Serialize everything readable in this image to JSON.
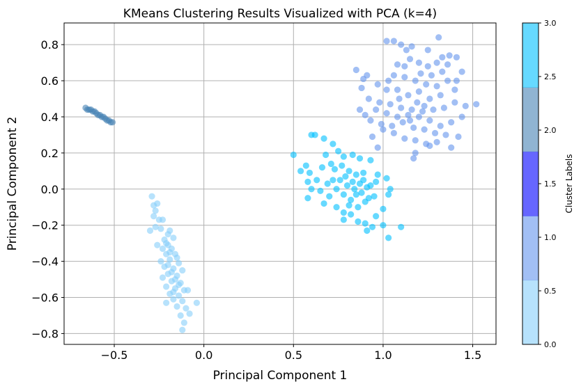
{
  "chart_data": {
    "type": "scatter",
    "title": "KMeans Clustering Results Visualized with PCA (k=4)",
    "xlabel": "Principal Component 1",
    "ylabel": "Principal Component 2",
    "xlim": [
      -0.78,
      1.63
    ],
    "ylim": [
      -0.86,
      0.92
    ],
    "x_ticks": [
      -0.5,
      0.0,
      0.5,
      1.0,
      1.5
    ],
    "x_tick_labels": [
      "−0.5",
      "0.0",
      "0.5",
      "1.0",
      "1.5"
    ],
    "y_ticks": [
      -0.8,
      -0.6,
      -0.4,
      -0.2,
      0.0,
      0.2,
      0.4,
      0.6,
      0.8
    ],
    "y_tick_labels": [
      "−0.8",
      "−0.6",
      "−0.4",
      "−0.2",
      "0.0",
      "0.2",
      "0.4",
      "0.6",
      "0.8"
    ],
    "grid": true,
    "marker_alpha": 0.6,
    "series": [
      {
        "cluster": 0,
        "color": "#87CEFA",
        "points": [
          [
            -0.29,
            -0.04
          ],
          [
            -0.28,
            -0.09
          ],
          [
            -0.27,
            -0.12
          ],
          [
            -0.26,
            -0.08
          ],
          [
            -0.28,
            -0.15
          ],
          [
            -0.25,
            -0.17
          ],
          [
            -0.27,
            -0.21
          ],
          [
            -0.3,
            -0.23
          ],
          [
            -0.24,
            -0.22
          ],
          [
            -0.2,
            -0.25
          ],
          [
            -0.19,
            -0.23
          ],
          [
            -0.22,
            -0.28
          ],
          [
            -0.17,
            -0.27
          ],
          [
            -0.2,
            -0.31
          ],
          [
            -0.23,
            -0.33
          ],
          [
            -0.18,
            -0.33
          ],
          [
            -0.21,
            -0.36
          ],
          [
            -0.16,
            -0.36
          ],
          [
            -0.24,
            -0.4
          ],
          [
            -0.19,
            -0.39
          ],
          [
            -0.14,
            -0.41
          ],
          [
            -0.22,
            -0.43
          ],
          [
            -0.17,
            -0.44
          ],
          [
            -0.12,
            -0.45
          ],
          [
            -0.2,
            -0.47
          ],
          [
            -0.15,
            -0.48
          ],
          [
            -0.23,
            -0.49
          ],
          [
            -0.18,
            -0.51
          ],
          [
            -0.13,
            -0.52
          ],
          [
            -0.21,
            -0.54
          ],
          [
            -0.16,
            -0.55
          ],
          [
            -0.11,
            -0.56
          ],
          [
            -0.19,
            -0.58
          ],
          [
            -0.14,
            -0.59
          ],
          [
            -0.17,
            -0.61
          ],
          [
            -0.12,
            -0.62
          ],
          [
            -0.15,
            -0.65
          ],
          [
            -0.1,
            -0.66
          ],
          [
            -0.13,
            -0.7
          ],
          [
            -0.08,
            -0.69
          ],
          [
            -0.11,
            -0.74
          ],
          [
            -0.04,
            -0.63
          ],
          [
            -0.12,
            -0.78
          ],
          [
            -0.23,
            -0.17
          ],
          [
            -0.26,
            -0.31
          ],
          [
            -0.21,
            -0.63
          ],
          [
            -0.09,
            -0.56
          ],
          [
            -0.15,
            -0.38
          ],
          [
            -0.2,
            -0.42
          ],
          [
            -0.16,
            -0.5
          ],
          [
            -0.18,
            -0.46
          ],
          [
            -0.14,
            -0.53
          ],
          [
            -0.17,
            -0.57
          ],
          [
            -0.21,
            -0.3
          ],
          [
            -0.19,
            -0.35
          ]
        ]
      },
      {
        "cluster": 1,
        "color": "#6495ED",
        "points": [
          [
            1.02,
            0.82
          ],
          [
            1.06,
            0.82
          ],
          [
            1.1,
            0.8
          ],
          [
            1.16,
            0.79
          ],
          [
            1.25,
            0.77
          ],
          [
            1.31,
            0.84
          ],
          [
            1.33,
            0.73
          ],
          [
            1.37,
            0.74
          ],
          [
            1.41,
            0.73
          ],
          [
            1.44,
            0.65
          ],
          [
            1.41,
            0.6
          ],
          [
            1.36,
            0.69
          ],
          [
            1.3,
            0.7
          ],
          [
            1.25,
            0.68
          ],
          [
            1.2,
            0.7
          ],
          [
            1.15,
            0.72
          ],
          [
            1.12,
            0.68
          ],
          [
            1.08,
            0.69
          ],
          [
            1.06,
            0.63
          ],
          [
            1.12,
            0.62
          ],
          [
            1.18,
            0.6
          ],
          [
            1.24,
            0.58
          ],
          [
            1.3,
            0.57
          ],
          [
            1.36,
            0.6
          ],
          [
            1.4,
            0.55
          ],
          [
            1.32,
            0.52
          ],
          [
            1.26,
            0.5
          ],
          [
            1.2,
            0.54
          ],
          [
            1.14,
            0.52
          ],
          [
            1.08,
            0.55
          ],
          [
            1.02,
            0.55
          ],
          [
            0.97,
            0.58
          ],
          [
            0.91,
            0.63
          ],
          [
            0.88,
            0.56
          ],
          [
            0.92,
            0.5
          ],
          [
            0.98,
            0.48
          ],
          [
            1.04,
            0.47
          ],
          [
            1.1,
            0.45
          ],
          [
            1.16,
            0.44
          ],
          [
            1.22,
            0.43
          ],
          [
            1.28,
            0.44
          ],
          [
            1.34,
            0.45
          ],
          [
            1.4,
            0.48
          ],
          [
            1.46,
            0.46
          ],
          [
            1.52,
            0.47
          ],
          [
            1.44,
            0.4
          ],
          [
            1.38,
            0.37
          ],
          [
            1.32,
            0.35
          ],
          [
            1.26,
            0.38
          ],
          [
            1.2,
            0.4
          ],
          [
            1.14,
            0.41
          ],
          [
            1.08,
            0.4
          ],
          [
            1.02,
            0.42
          ],
          [
            0.96,
            0.44
          ],
          [
            0.9,
            0.41
          ],
          [
            0.87,
            0.44
          ],
          [
            0.93,
            0.38
          ],
          [
            0.99,
            0.36
          ],
          [
            1.05,
            0.35
          ],
          [
            1.11,
            0.37
          ],
          [
            1.17,
            0.34
          ],
          [
            1.23,
            0.33
          ],
          [
            1.29,
            0.31
          ],
          [
            1.35,
            0.3
          ],
          [
            1.42,
            0.29
          ],
          [
            1.3,
            0.26
          ],
          [
            1.24,
            0.25
          ],
          [
            1.18,
            0.27
          ],
          [
            1.12,
            0.28
          ],
          [
            1.06,
            0.31
          ],
          [
            1.0,
            0.33
          ],
          [
            0.94,
            0.29
          ],
          [
            0.97,
            0.23
          ],
          [
            1.18,
            0.2
          ],
          [
            1.26,
            0.24
          ],
          [
            1.38,
            0.23
          ],
          [
            1.17,
            0.17
          ],
          [
            0.89,
            0.61
          ],
          [
            0.85,
            0.66
          ],
          [
            1.13,
            0.77
          ],
          [
            1.21,
            0.64
          ],
          [
            1.27,
            0.63
          ],
          [
            1.33,
            0.65
          ],
          [
            1.19,
            0.48
          ],
          [
            1.23,
            0.46
          ],
          [
            1.15,
            0.38
          ],
          [
            1.09,
            0.5
          ],
          [
            1.03,
            0.6
          ]
        ]
      },
      {
        "cluster": 2,
        "color": "#4682B4",
        "points": [
          [
            -0.66,
            0.45
          ],
          [
            -0.64,
            0.44
          ],
          [
            -0.62,
            0.43
          ],
          [
            -0.6,
            0.42
          ],
          [
            -0.58,
            0.41
          ],
          [
            -0.56,
            0.4
          ],
          [
            -0.54,
            0.38
          ],
          [
            -0.52,
            0.37
          ],
          [
            -0.53,
            0.38
          ],
          [
            -0.57,
            0.4
          ],
          [
            -0.61,
            0.43
          ],
          [
            -0.65,
            0.44
          ],
          [
            -0.55,
            0.39
          ],
          [
            -0.59,
            0.41
          ],
          [
            -0.63,
            0.44
          ],
          [
            -0.51,
            0.37
          ]
        ]
      },
      {
        "cluster": 3,
        "color": "#00BFFF",
        "points": [
          [
            0.5,
            0.19
          ],
          [
            0.6,
            0.3
          ],
          [
            0.62,
            0.3
          ],
          [
            0.67,
            0.28
          ],
          [
            0.57,
            0.13
          ],
          [
            0.54,
            0.1
          ],
          [
            0.59,
            0.09
          ],
          [
            0.58,
            0.04
          ],
          [
            0.63,
            0.05
          ],
          [
            0.6,
            0.0
          ],
          [
            0.65,
            -0.01
          ],
          [
            0.58,
            -0.05
          ],
          [
            0.67,
            -0.08
          ],
          [
            0.7,
            -0.04
          ],
          [
            0.74,
            -0.1
          ],
          [
            0.78,
            -0.13
          ],
          [
            0.82,
            -0.14
          ],
          [
            0.78,
            -0.17
          ],
          [
            0.86,
            -0.18
          ],
          [
            0.9,
            -0.19
          ],
          [
            0.94,
            -0.21
          ],
          [
            1.0,
            -0.2
          ],
          [
            0.91,
            -0.23
          ],
          [
            1.03,
            -0.27
          ],
          [
            1.1,
            -0.21
          ],
          [
            0.96,
            -0.15
          ],
          [
            1.0,
            -0.11
          ],
          [
            1.03,
            -0.03
          ],
          [
            1.04,
            0.0
          ],
          [
            1.02,
            0.06
          ],
          [
            0.97,
            0.08
          ],
          [
            0.93,
            0.16
          ],
          [
            0.87,
            0.17
          ],
          [
            0.83,
            0.19
          ],
          [
            0.78,
            0.18
          ],
          [
            0.75,
            0.21
          ],
          [
            0.72,
            0.25
          ],
          [
            0.68,
            0.19
          ],
          [
            0.71,
            0.14
          ],
          [
            0.66,
            0.12
          ],
          [
            0.73,
            0.11
          ],
          [
            0.77,
            0.13
          ],
          [
            0.81,
            0.1
          ],
          [
            0.85,
            0.08
          ],
          [
            0.89,
            0.05
          ],
          [
            0.93,
            0.02
          ],
          [
            0.95,
            -0.04
          ],
          [
            0.9,
            -0.07
          ],
          [
            0.86,
            -0.1
          ],
          [
            0.82,
            -0.06
          ],
          [
            0.78,
            -0.03
          ],
          [
            0.74,
            0.0
          ],
          [
            0.76,
            0.05
          ],
          [
            0.8,
            0.02
          ],
          [
            0.84,
            0.0
          ],
          [
            0.88,
            -0.02
          ],
          [
            0.92,
            -0.05
          ],
          [
            0.79,
            0.07
          ],
          [
            0.83,
            0.04
          ],
          [
            0.87,
            0.03
          ],
          [
            0.91,
            0.01
          ],
          [
            0.72,
            0.05
          ],
          [
            0.69,
            0.03
          ],
          [
            0.81,
            -0.09
          ],
          [
            0.85,
            -0.03
          ],
          [
            0.89,
            0.09
          ],
          [
            0.96,
            0.04
          ]
        ]
      }
    ],
    "colorbar": {
      "label": "Cluster Labels",
      "range": [
        0.0,
        3.0
      ],
      "ticks": [
        0.0,
        0.5,
        1.0,
        1.5,
        2.0,
        2.5,
        3.0
      ],
      "tick_labels": [
        "0.0",
        "0.5",
        "1.0",
        "1.5",
        "2.0",
        "2.5",
        "3.0"
      ],
      "colors": [
        "#87CEFA",
        "#6495ED",
        "#0000FF",
        "#4682B4",
        "#00BFFF"
      ],
      "alpha": 0.6
    }
  }
}
